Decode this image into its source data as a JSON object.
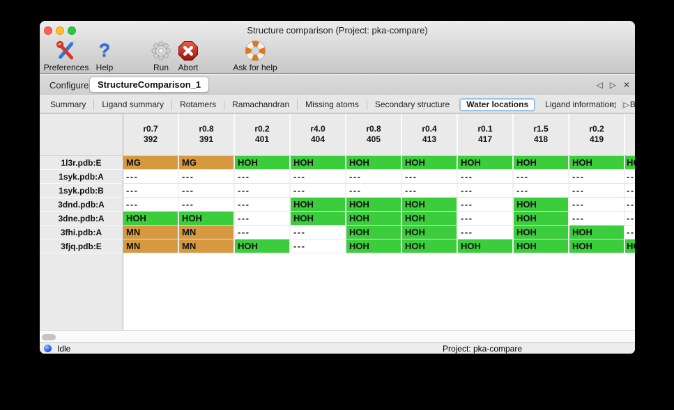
{
  "window": {
    "title": "Structure comparison (Project: pka-compare)",
    "traffic_lights": [
      "close",
      "minimize",
      "zoom"
    ]
  },
  "toolbar": {
    "items": [
      {
        "label": "Preferences",
        "icon": "tools-icon"
      },
      {
        "label": "Help",
        "icon": "question-mark-icon",
        "glyph": "?"
      },
      {
        "label": "Run",
        "icon": "gear-icon"
      },
      {
        "label": "Abort",
        "icon": "stop-icon"
      },
      {
        "label": "Ask for help",
        "icon": "lifebuoy-icon"
      }
    ]
  },
  "tabs": {
    "items": [
      {
        "label": "Configure",
        "selected": false
      },
      {
        "label": "StructureComparison_1",
        "selected": true
      }
    ],
    "nav_left": "◁",
    "nav_right": "▷",
    "nav_close": "✕"
  },
  "subtabs": {
    "selected": "Water locations",
    "items": [
      "Summary",
      "Ligand summary",
      "Rotamers",
      "Ramachandran",
      "Missing atoms",
      "Secondary structure",
      "Water locations",
      "Ligand information",
      "B-factors"
    ],
    "nav_left": "◁",
    "nav_right": "▷"
  },
  "table": {
    "empty_marker": "---",
    "colors": {
      "water": "#3ccd3c",
      "ion": "#d6993f",
      "empty": "#ffffff"
    },
    "columns": [
      {
        "rmsd": "r0.7",
        "residue": "392"
      },
      {
        "rmsd": "r0.8",
        "residue": "391"
      },
      {
        "rmsd": "r0.2",
        "residue": "401"
      },
      {
        "rmsd": "r4.0",
        "residue": "404"
      },
      {
        "rmsd": "r0.8",
        "residue": "405"
      },
      {
        "rmsd": "r0.4",
        "residue": "413"
      },
      {
        "rmsd": "r0.1",
        "residue": "417"
      },
      {
        "rmsd": "r1.5",
        "residue": "418"
      },
      {
        "rmsd": "r0.2",
        "residue": "419"
      },
      {
        "rmsd": "",
        "residue": "",
        "partial": true
      }
    ],
    "rows": [
      {
        "label": "1l3r.pdb:E",
        "cells": [
          "MG",
          "MG",
          "HOH",
          "HOH",
          "HOH",
          "HOH",
          "HOH",
          "HOH",
          "HOH",
          "HOH"
        ]
      },
      {
        "label": "1syk.pdb:A",
        "cells": [
          "---",
          "---",
          "---",
          "---",
          "---",
          "---",
          "---",
          "---",
          "---",
          "---"
        ]
      },
      {
        "label": "1syk.pdb:B",
        "cells": [
          "---",
          "---",
          "---",
          "---",
          "---",
          "---",
          "---",
          "---",
          "---",
          "---"
        ]
      },
      {
        "label": "3dnd.pdb:A",
        "cells": [
          "---",
          "---",
          "---",
          "HOH",
          "HOH",
          "HOH",
          "---",
          "HOH",
          "---",
          "---"
        ]
      },
      {
        "label": "3dne.pdb:A",
        "cells": [
          "HOH",
          "HOH",
          "---",
          "HOH",
          "HOH",
          "HOH",
          "---",
          "HOH",
          "---",
          "---"
        ]
      },
      {
        "label": "3fhi.pdb:A",
        "cells": [
          "MN",
          "MN",
          "---",
          "---",
          "HOH",
          "HOH",
          "---",
          "HOH",
          "HOH",
          "---"
        ]
      },
      {
        "label": "3fjq.pdb:E",
        "cells": [
          "MN",
          "MN",
          "HOH",
          "---",
          "HOH",
          "HOH",
          "HOH",
          "HOH",
          "HOH",
          "HOH"
        ]
      }
    ]
  },
  "statusbar": {
    "status": "Idle",
    "project": "Project: pka-compare"
  }
}
